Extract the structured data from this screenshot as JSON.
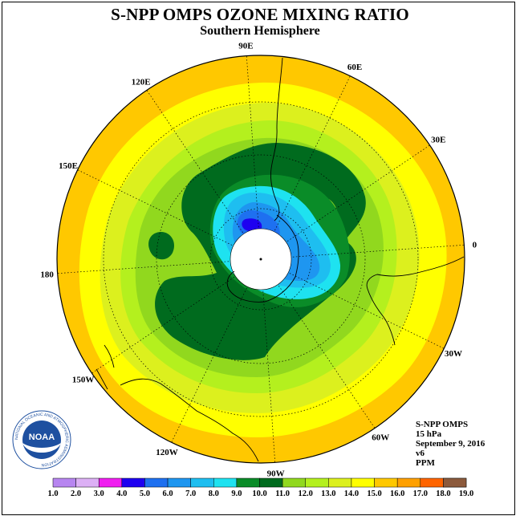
{
  "header": {
    "title": "S-NPP OMPS OZONE MIXING RATIO",
    "subtitle": "Southern Hemisphere"
  },
  "map": {
    "projection": "south-polar-stereographic",
    "longitude_labels": [
      {
        "text": "0",
        "lon": 0
      },
      {
        "text": "30E",
        "lon": 30
      },
      {
        "text": "60E",
        "lon": 60
      },
      {
        "text": "90E",
        "lon": 90
      },
      {
        "text": "120E",
        "lon": 120
      },
      {
        "text": "150E",
        "lon": 150
      },
      {
        "text": "180",
        "lon": 180
      },
      {
        "text": "150W",
        "lon": -150
      },
      {
        "text": "120W",
        "lon": -120
      },
      {
        "text": "90W",
        "lon": -90
      },
      {
        "text": "60W",
        "lon": -60
      },
      {
        "text": "30W",
        "lon": -30
      }
    ],
    "polar_no_data": true
  },
  "info": {
    "instrument": "S-NPP OMPS",
    "level": "15 hPa",
    "date": "September 9, 2016",
    "version": "v6",
    "units": "PPM"
  },
  "logo": {
    "text": "NOAA",
    "ring_text": "NATIONAL OCEANIC AND ATMOSPHERIC ADMINISTRATION"
  },
  "colorbar": {
    "labels": [
      "1.0",
      "2.0",
      "3.0",
      "4.0",
      "5.0",
      "6.0",
      "7.0",
      "8.0",
      "9.0",
      "10.0",
      "11.0",
      "12.0",
      "13.0",
      "14.0",
      "15.0",
      "16.0",
      "17.0",
      "18.0",
      "19.0"
    ],
    "colors": [
      "#b785f0",
      "#dcb0f5",
      "#f01ef0",
      "#1e00f0",
      "#1e70f0",
      "#1e96f0",
      "#1ebef0",
      "#1ee2f0",
      "#0a8c28",
      "#006b1e",
      "#91d81e",
      "#b4f01e",
      "#dcf01e",
      "#ffff00",
      "#ffc800",
      "#ffa000",
      "#ff6400",
      "#ff0000",
      "#8c5a3c"
    ]
  }
}
